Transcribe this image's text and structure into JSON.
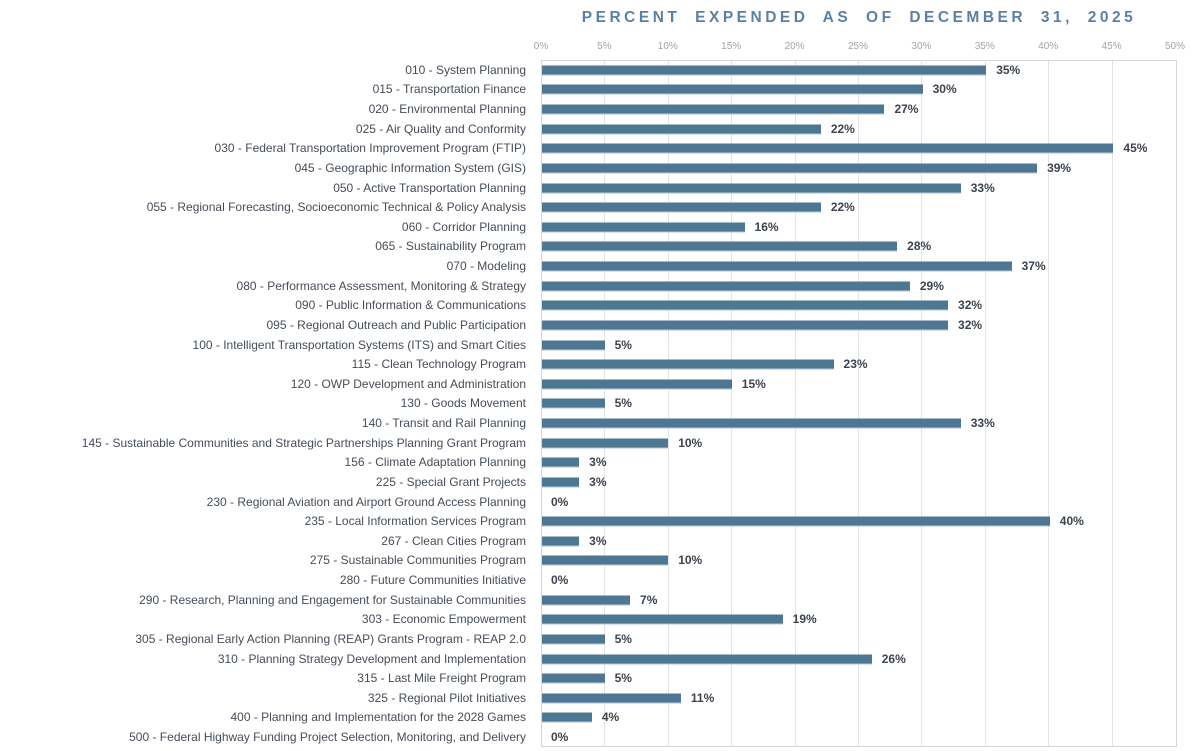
{
  "chart_data": {
    "type": "bar",
    "orientation": "horizontal",
    "title": "PERCENT EXPENDED AS OF DECEMBER 31, 2025",
    "xlabel": "",
    "ylabel": "",
    "xlim": [
      0,
      50
    ],
    "x_ticks": [
      "0%",
      "5%",
      "10%",
      "15%",
      "20%",
      "25%",
      "30%",
      "35%",
      "40%",
      "45%",
      "50%"
    ],
    "grid": true,
    "legend": "none",
    "data_label_position": "outside-end",
    "categories": [
      "010 - System Planning",
      "015 - Transportation Finance",
      "020 - Environmental Planning",
      "025 - Air Quality and Conformity",
      "030 - Federal Transportation Improvement Program (FTIP)",
      "045 - Geographic Information System (GIS)",
      "050 - Active Transportation Planning",
      "055 - Regional Forecasting, Socioeconomic Technical & Policy Analysis",
      "060 - Corridor Planning",
      "065 - Sustainability Program",
      "070 - Modeling",
      "080 - Performance Assessment, Monitoring & Strategy",
      "090 - Public Information & Communications",
      "095 - Regional Outreach and Public Participation",
      "100 - Intelligent Transportation Systems (ITS) and Smart Cities",
      "115 - Clean Technology Program",
      "120 - OWP Development and Administration",
      "130 - Goods Movement",
      "140 - Transit and Rail Planning",
      "145 - Sustainable Communities and Strategic Partnerships Planning Grant Program",
      "156 - Climate Adaptation Planning",
      "225 - Special Grant Projects",
      "230 - Regional Aviation and Airport Ground Access Planning",
      "235 - Local Information Services Program",
      "267 - Clean Cities Program",
      "275 - Sustainable Communities Program",
      "280 - Future Communities Initiative",
      "290 - Research, Planning and Engagement for Sustainable Communities",
      "303 - Economic Empowerment",
      "305 - Regional Early Action Planning (REAP) Grants Program - REAP 2.0",
      "310 - Planning Strategy Development and Implementation",
      "315 - Last Mile Freight Program",
      "325 - Regional Pilot Initiatives",
      "400 - Planning and Implementation for the 2028 Games",
      "500 - Federal Highway Funding Project Selection, Monitoring, and Delivery"
    ],
    "values": [
      35,
      30,
      27,
      22,
      45,
      39,
      33,
      22,
      16,
      28,
      37,
      29,
      32,
      32,
      5,
      23,
      15,
      5,
      33,
      10,
      3,
      3,
      0,
      40,
      3,
      10,
      0,
      7,
      19,
      5,
      26,
      5,
      11,
      4,
      0
    ],
    "value_labels": [
      "35%",
      "30%",
      "27%",
      "22%",
      "45%",
      "39%",
      "33%",
      "22%",
      "16%",
      "28%",
      "37%",
      "29%",
      "32%",
      "32%",
      "5%",
      "23%",
      "15%",
      "5%",
      "33%",
      "10%",
      "3%",
      "3%",
      "0%",
      "40%",
      "3%",
      "10%",
      "0%",
      "7%",
      "19%",
      "5%",
      "26%",
      "5%",
      "11%",
      "4%",
      "0%"
    ]
  },
  "colors": {
    "title": "#5b80a5",
    "bar": "#4d7792",
    "bar_bottom_edge": "#b3c7d5",
    "category_label": "#454d58",
    "value_label": "#3c434e",
    "axis_tick": "#a3a3a3",
    "gridline": "#e4e4e4",
    "plot_border": "#d6d6d6",
    "background": "#ffffff"
  }
}
